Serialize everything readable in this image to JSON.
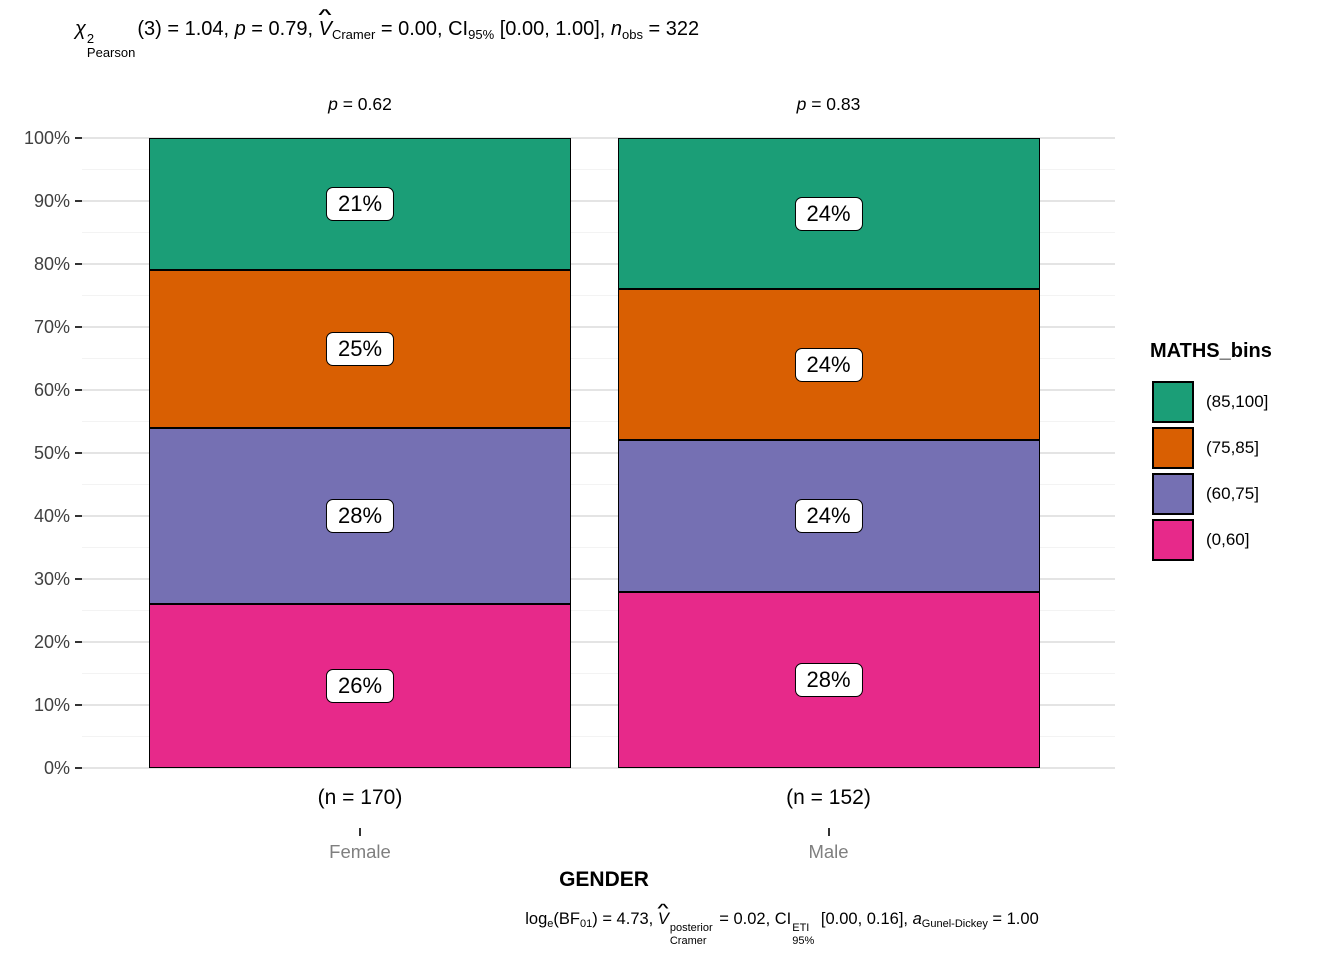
{
  "title_stats": {
    "chi": "χ",
    "chi_sup": "2",
    "chi_sub": "Pearson",
    "seg1": "(3) = 1.04, ",
    "p_sym": "p",
    "seg2": " = 0.79, ",
    "hat": "^",
    "v_sym": "V",
    "v_sub": "Cramer",
    "seg3": " = 0.00, CI",
    "ci_sub": "95%",
    "seg4": " [0.00, 1.00], ",
    "n_sym": "n",
    "n_sub": "obs",
    "seg5": " = 322"
  },
  "facet_labels": [
    {
      "sym": "p",
      "rest": " = 0.62"
    },
    {
      "sym": "p",
      "rest": " = 0.83"
    }
  ],
  "chart_data": {
    "type": "bar",
    "stacked": true,
    "units": "percent",
    "title": "chi-square Pearson(3) = 1.04, p = 0.79, V-hat Cramer = 0.00, CI 95% [0.00, 1.00], n obs = 322",
    "categories": [
      "Female",
      "Male"
    ],
    "category_counts": [
      "(n = 170)",
      "(n = 152)"
    ],
    "category_p_values": [
      0.62,
      0.83
    ],
    "series": [
      {
        "name": "(85,100]",
        "color": "#1b9e77",
        "values": [
          21,
          24
        ],
        "labels": [
          "21%",
          "24%"
        ]
      },
      {
        "name": "(75,85]",
        "color": "#d95f02",
        "values": [
          25,
          24
        ],
        "labels": [
          "25%",
          "24%"
        ]
      },
      {
        "name": "(60,75]",
        "color": "#7570b3",
        "values": [
          28,
          24
        ],
        "labels": [
          "28%",
          "24%"
        ]
      },
      {
        "name": "(0,60]",
        "color": "#e7298a",
        "values": [
          26,
          28
        ],
        "labels": [
          "26%",
          "28%"
        ]
      }
    ],
    "xlabel": "GENDER",
    "ylabel": "",
    "ylim": [
      0,
      100
    ],
    "y_tick_step": 10,
    "y_minor_step": 5,
    "grid": true,
    "legend_title": "MATHS_bins",
    "legend_position": "right"
  },
  "axes": {
    "y_ticks": [
      "0%",
      "10%",
      "20%",
      "30%",
      "40%",
      "50%",
      "60%",
      "70%",
      "80%",
      "90%",
      "100%"
    ]
  },
  "caption_stats": {
    "log": "log",
    "log_sub": "e",
    "bf_open": "(BF",
    "bf_sub": "01",
    "bf_close": ")",
    "seg1": " = 4.73, ",
    "hat": "^",
    "v_sym": "V",
    "v_sup": "posterior",
    "v_sub": "Cramer",
    "seg2": " = 0.02, CI",
    "ci_sup": "ETI",
    "ci_sub": "95%",
    "seg3": " [0.00, 0.16], ",
    "a_sym": "a",
    "a_sub": "Gunel-Dickey",
    "seg4": " = 1.00"
  },
  "theme": {
    "background": "#ffffff",
    "grid_major": "#e4e4e4",
    "grid_minor": "#f3f3f3",
    "axis_text": "#404040",
    "muted_text": "#7f7f7f",
    "tick_mark": "#333333",
    "bar_border": "#000000",
    "label_box_bg": "#ffffff"
  }
}
